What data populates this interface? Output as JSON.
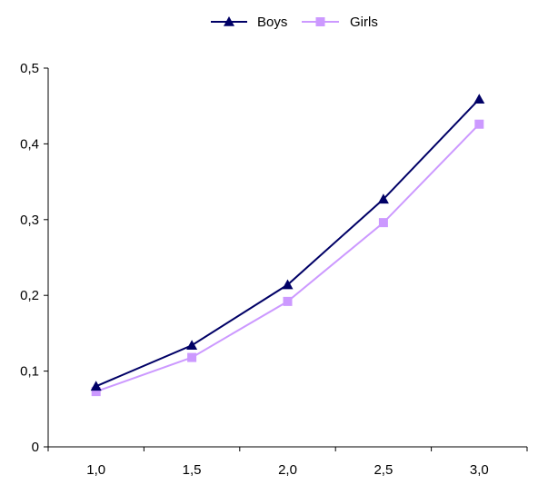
{
  "colors": {
    "boys": "#000066",
    "girls": "#cc99ff",
    "axis": "#000000",
    "background": "#ffffff"
  },
  "chart_data": {
    "type": "line",
    "title": "",
    "xlabel": "",
    "ylabel": "",
    "x": [
      1.0,
      1.5,
      2.0,
      2.5,
      3.0
    ],
    "x_tick_labels": [
      "1,0",
      "1,5",
      "2,0",
      "2,5",
      "3,0"
    ],
    "y_tick_labels": [
      "0",
      "0,1",
      "0,2",
      "0,3",
      "0,4",
      "0,5"
    ],
    "y_ticks": [
      0,
      0.1,
      0.2,
      0.3,
      0.4,
      0.5
    ],
    "ylim": [
      0,
      0.5
    ],
    "grid": false,
    "legend_position": "top-center",
    "series": [
      {
        "name": "Boys",
        "marker": "triangle",
        "color": "#000066",
        "values": [
          0.08,
          0.134,
          0.214,
          0.327,
          0.459
        ]
      },
      {
        "name": "Girls",
        "marker": "square",
        "color": "#cc99ff",
        "values": [
          0.073,
          0.118,
          0.192,
          0.296,
          0.426
        ]
      }
    ]
  }
}
